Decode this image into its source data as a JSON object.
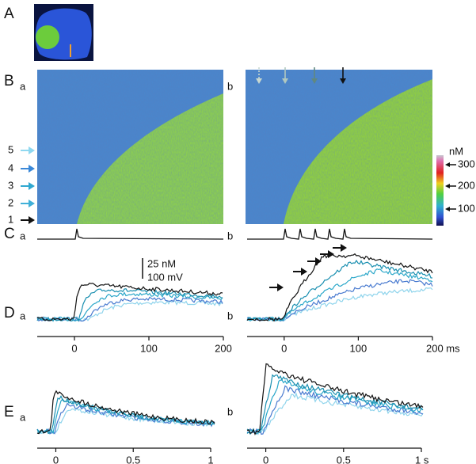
{
  "panel_labels": [
    "A",
    "B",
    "C",
    "D",
    "E"
  ],
  "sub_labels": [
    "a",
    "b"
  ],
  "line_numbers": [
    5,
    4,
    3,
    2,
    1
  ],
  "colorbar": {
    "unit": "nM",
    "ticks": [
      300,
      200,
      100
    ]
  },
  "scale_bar": {
    "concentration": "25 nM",
    "voltage": "100 mV"
  },
  "D": {
    "xlim": [
      -50,
      200
    ],
    "a_ticks": [
      0,
      100,
      200
    ],
    "b_ticks": [
      0,
      100,
      {
        "value": 200,
        "label": "200 ms"
      }
    ]
  },
  "E": {
    "xlim": [
      -0.12,
      1
    ],
    "a_ticks": [
      0,
      0.5,
      1
    ],
    "b_ticks": [
      0,
      0.5,
      {
        "value": 1,
        "label": "1 s"
      }
    ]
  }
}
